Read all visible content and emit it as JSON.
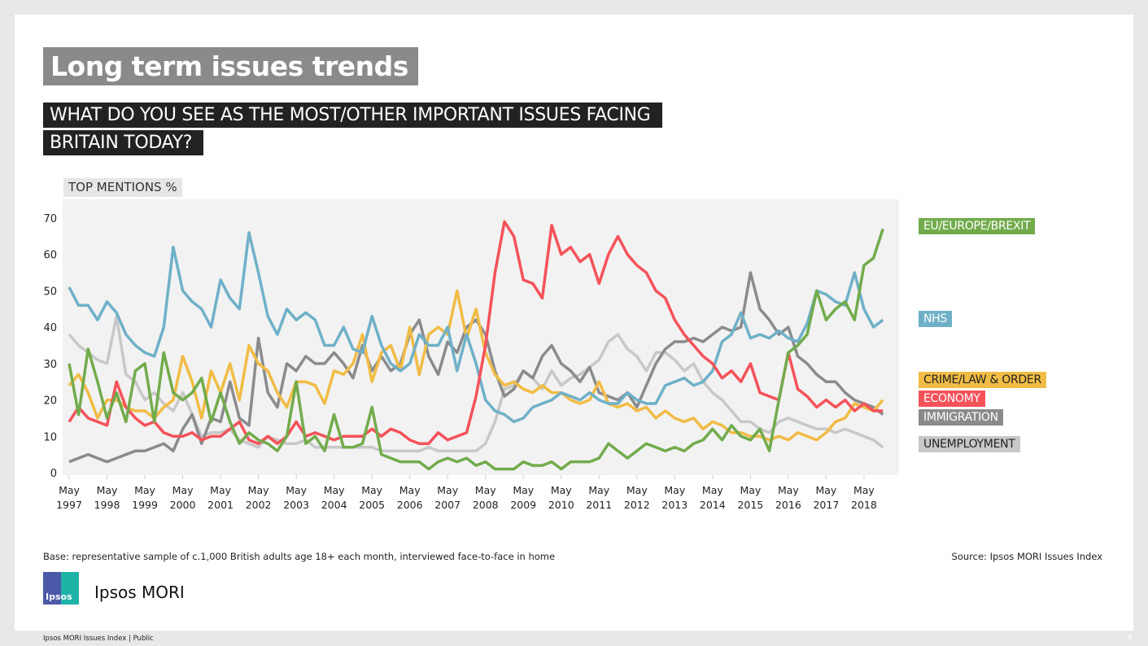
{
  "header": {
    "title": "Long term issues trends",
    "question_line1": "WHAT DO YOU SEE AS THE MOST/OTHER IMPORTANT ISSUES FACING",
    "question_line2": "BRITAIN TODAY?"
  },
  "chart_data": {
    "type": "line",
    "ylabel": "TOP MENTIONS %",
    "ylim": [
      0,
      70
    ],
    "yticks": [
      "0",
      "10",
      "20",
      "30",
      "40",
      "50",
      "60",
      "70"
    ],
    "xticks": [
      [
        "May",
        "1997"
      ],
      [
        "May",
        "1998"
      ],
      [
        "May",
        "1999"
      ],
      [
        "May",
        "2000"
      ],
      [
        "May",
        "2001"
      ],
      [
        "May",
        "2002"
      ],
      [
        "May",
        "2003"
      ],
      [
        "May",
        "2004"
      ],
      [
        "May",
        "2005"
      ],
      [
        "May",
        "2006"
      ],
      [
        "May",
        "2007"
      ],
      [
        "May",
        "2008"
      ],
      [
        "May",
        "2009"
      ],
      [
        "May",
        "2010"
      ],
      [
        "May",
        "2011"
      ],
      [
        "May",
        "2012"
      ],
      [
        "May",
        "2013"
      ],
      [
        "May",
        "2014"
      ],
      [
        "May",
        "2015"
      ],
      [
        "May",
        "2016"
      ],
      [
        "May",
        "2017"
      ],
      [
        "May",
        "2018"
      ]
    ],
    "grid": false,
    "legend_placement": "right",
    "x": [
      "1997-05",
      "1997-08",
      "1997-11",
      "1998-02",
      "1998-05",
      "1998-08",
      "1998-11",
      "1999-02",
      "1999-05",
      "1999-08",
      "1999-11",
      "2000-02",
      "2000-05",
      "2000-08",
      "2000-11",
      "2001-02",
      "2001-05",
      "2001-08",
      "2001-11",
      "2002-02",
      "2002-05",
      "2002-08",
      "2002-11",
      "2003-02",
      "2003-05",
      "2003-08",
      "2003-11",
      "2004-02",
      "2004-05",
      "2004-08",
      "2004-11",
      "2005-02",
      "2005-05",
      "2005-08",
      "2005-11",
      "2006-02",
      "2006-05",
      "2006-08",
      "2006-11",
      "2007-02",
      "2007-05",
      "2007-08",
      "2007-11",
      "2008-02",
      "2008-05",
      "2008-08",
      "2008-11",
      "2009-02",
      "2009-05",
      "2009-08",
      "2009-11",
      "2010-02",
      "2010-05",
      "2010-08",
      "2010-11",
      "2011-02",
      "2011-05",
      "2011-08",
      "2011-11",
      "2012-02",
      "2012-05",
      "2012-08",
      "2012-11",
      "2013-02",
      "2013-05",
      "2013-08",
      "2013-11",
      "2014-02",
      "2014-05",
      "2014-08",
      "2014-11",
      "2015-02",
      "2015-05",
      "2015-08",
      "2015-11",
      "2016-02",
      "2016-05",
      "2016-08",
      "2016-11",
      "2017-02",
      "2017-05",
      "2017-08",
      "2017-11",
      "2018-02",
      "2018-05",
      "2018-08",
      "2018-11"
    ],
    "series": [
      {
        "name": "UNEMPLOYMENT",
        "color": "#c8c8c8",
        "label_color": "#222222",
        "values": [
          38,
          35,
          33,
          31,
          30,
          43,
          27,
          25,
          20,
          22,
          19,
          17,
          22,
          16,
          10,
          11,
          11,
          12,
          9,
          8,
          7,
          10,
          9,
          8,
          8,
          9,
          7,
          7,
          7,
          7,
          7,
          7,
          7,
          6,
          6,
          6,
          6,
          6,
          7,
          6,
          6,
          6,
          6,
          6,
          8,
          14,
          23,
          24,
          28,
          26,
          23,
          28,
          24,
          26,
          27,
          29,
          31,
          36,
          38,
          34,
          32,
          28,
          33,
          33,
          31,
          28,
          30,
          25,
          22,
          20,
          17,
          14,
          14,
          12,
          11,
          14,
          15,
          14,
          13,
          12,
          12,
          11,
          12,
          11,
          10,
          9,
          7
        ]
      },
      {
        "name": "IMMIGRATION",
        "color": "#8a8b8d",
        "label_color": "#ffffff",
        "values": [
          3,
          4,
          5,
          4,
          3,
          4,
          5,
          6,
          6,
          7,
          8,
          6,
          12,
          16,
          8,
          15,
          14,
          25,
          15,
          13,
          37,
          22,
          18,
          30,
          28,
          32,
          30,
          30,
          33,
          30,
          26,
          35,
          28,
          32,
          28,
          30,
          38,
          42,
          32,
          27,
          36,
          33,
          40,
          42,
          38,
          28,
          21,
          23,
          28,
          26,
          32,
          35,
          30,
          28,
          25,
          29,
          22,
          21,
          20,
          22,
          18,
          24,
          30,
          34,
          36,
          36,
          37,
          36,
          38,
          40,
          39,
          40,
          55,
          45,
          42,
          38,
          40,
          32,
          30,
          27,
          25,
          25,
          22,
          20,
          19,
          18,
          16
        ]
      },
      {
        "name": "CRIME/LAW & ORDER",
        "color": "#f1bc45",
        "label_color": "#222222",
        "values": [
          24,
          27,
          22,
          15,
          20,
          20,
          18,
          17,
          17,
          15,
          18,
          20,
          32,
          25,
          15,
          28,
          22,
          30,
          20,
          35,
          30,
          28,
          22,
          18,
          25,
          25,
          24,
          19,
          28,
          27,
          30,
          38,
          25,
          33,
          35,
          28,
          40,
          27,
          38,
          40,
          38,
          50,
          37,
          45,
          33,
          27,
          24,
          25,
          23,
          22,
          24,
          22,
          22,
          20,
          19,
          20,
          25,
          19,
          18,
          19,
          17,
          18,
          15,
          17,
          15,
          14,
          15,
          12,
          14,
          13,
          11,
          11,
          10,
          10,
          9,
          10,
          9,
          11,
          10,
          9,
          11,
          14,
          15,
          19,
          18,
          17,
          20
        ]
      },
      {
        "name": "NHS",
        "color": "#6fb0c8",
        "label_color": "#ffffff",
        "values": [
          51,
          46,
          46,
          42,
          47,
          44,
          38,
          35,
          33,
          32,
          40,
          62,
          50,
          47,
          45,
          40,
          53,
          48,
          45,
          66,
          55,
          43,
          38,
          45,
          42,
          44,
          42,
          35,
          35,
          40,
          34,
          33,
          43,
          35,
          30,
          28,
          30,
          38,
          35,
          35,
          40,
          28,
          38,
          30,
          20,
          17,
          16,
          14,
          15,
          18,
          19,
          20,
          22,
          21,
          20,
          22,
          20,
          19,
          19,
          22,
          20,
          19,
          19,
          24,
          25,
          26,
          24,
          25,
          28,
          36,
          38,
          44,
          37,
          38,
          37,
          39,
          37,
          36,
          41,
          50,
          49,
          47,
          46,
          55,
          45,
          40,
          42
        ]
      },
      {
        "name": "ECONOMY",
        "color": "#f5525a",
        "label_color": "#ffffff",
        "values": [
          14,
          18,
          15,
          14,
          13,
          25,
          18,
          15,
          13,
          14,
          11,
          10,
          10,
          11,
          9,
          10,
          10,
          12,
          14,
          9,
          8,
          10,
          8,
          10,
          14,
          10,
          11,
          10,
          9,
          10,
          10,
          10,
          12,
          10,
          12,
          11,
          9,
          8,
          8,
          11,
          9,
          10,
          11,
          21,
          35,
          55,
          69,
          65,
          53,
          52,
          48,
          68,
          60,
          62,
          58,
          60,
          52,
          60,
          65,
          60,
          57,
          55,
          50,
          48,
          42,
          38,
          35,
          32,
          30,
          26,
          28,
          25,
          30,
          22,
          21,
          20,
          33,
          23,
          21,
          18,
          20,
          18,
          20,
          17,
          19,
          17,
          17
        ]
      },
      {
        "name": "EU/EUROPE/BREXIT",
        "color": "#72ab4c",
        "label_color": "#ffffff",
        "values": [
          30,
          16,
          34,
          25,
          15,
          22,
          14,
          28,
          30,
          14,
          33,
          22,
          20,
          22,
          26,
          14,
          22,
          14,
          8,
          11,
          9,
          8,
          6,
          10,
          25,
          8,
          10,
          6,
          16,
          7,
          7,
          8,
          18,
          5,
          4,
          3,
          3,
          3,
          1,
          3,
          4,
          3,
          4,
          2,
          3,
          1,
          1,
          1,
          3,
          2,
          2,
          3,
          1,
          3,
          3,
          3,
          4,
          8,
          6,
          4,
          6,
          8,
          7,
          6,
          7,
          6,
          8,
          9,
          12,
          9,
          13,
          10,
          9,
          12,
          6,
          20,
          33,
          35,
          38,
          50,
          42,
          45,
          47,
          42,
          57,
          59,
          67
        ]
      }
    ]
  },
  "legend": [
    {
      "label": "EU/EUROPE/BREXIT",
      "color": "#72ab4c",
      "text_color": "#ffffff"
    },
    {
      "label": "NHS",
      "color": "#6fb0c8",
      "text_color": "#ffffff"
    },
    {
      "label": "CRIME/LAW & ORDER",
      "color": "#f1bc45",
      "text_color": "#222222"
    },
    {
      "label": "ECONOMY",
      "color": "#f5525a",
      "text_color": "#ffffff"
    },
    {
      "label": "IMMIGRATION",
      "color": "#8a8b8d",
      "text_color": "#ffffff"
    },
    {
      "label": "UNEMPLOYMENT",
      "color": "#c8c8c8",
      "text_color": "#222222"
    }
  ],
  "footer": {
    "base": "Base: representative sample of c.1,000 British adults age 18+ each month, interviewed face-to-face in home",
    "source": "Source: Ipsos MORI Issues Index",
    "brand": "Ipsos MORI",
    "logo_text": "Ipsos",
    "strip": "Ipsos MORI Issues Index | Public",
    "page": "4"
  }
}
